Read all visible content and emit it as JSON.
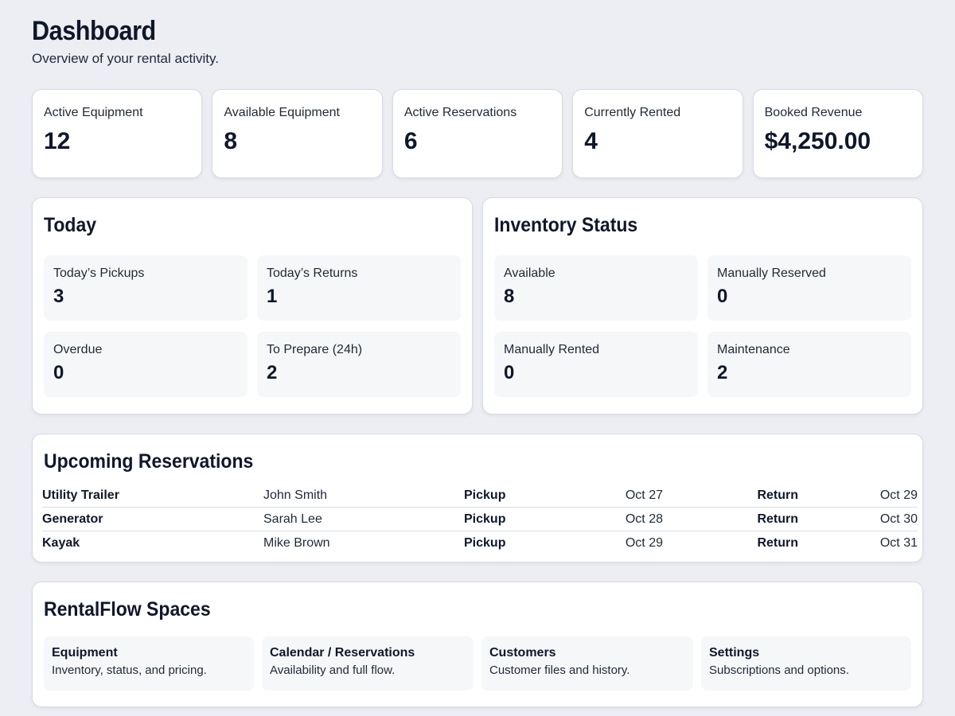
{
  "header": {
    "title": "Dashboard",
    "subtitle": "Overview of your rental activity."
  },
  "stats": [
    {
      "label": "Active Equipment",
      "value": "12"
    },
    {
      "label": "Available Equipment",
      "value": "8"
    },
    {
      "label": "Active Reservations",
      "value": "6"
    },
    {
      "label": "Currently Rented",
      "value": "4"
    },
    {
      "label": "Booked Revenue",
      "value": "$4,250.00"
    }
  ],
  "today": {
    "title": "Today",
    "items": [
      {
        "label": "Today’s Pickups",
        "value": "3"
      },
      {
        "label": "Today’s Returns",
        "value": "1"
      },
      {
        "label": "Overdue",
        "value": "0"
      },
      {
        "label": "To Prepare (24h)",
        "value": "2"
      }
    ]
  },
  "inventory": {
    "title": "Inventory Status",
    "items": [
      {
        "label": "Available",
        "value": "8"
      },
      {
        "label": "Manually Reserved",
        "value": "0"
      },
      {
        "label": "Manually Rented",
        "value": "0"
      },
      {
        "label": "Maintenance",
        "value": "2"
      }
    ]
  },
  "upcoming": {
    "title": "Upcoming Reservations",
    "pickup_label": "Pickup",
    "return_label": "Return",
    "rows": [
      {
        "item": "Utility Trailer",
        "customer": "John Smith",
        "pickup": "Oct 27",
        "return": "Oct 29"
      },
      {
        "item": "Generator",
        "customer": "Sarah Lee",
        "pickup": "Oct 28",
        "return": "Oct 30"
      },
      {
        "item": "Kayak",
        "customer": "Mike Brown",
        "pickup": "Oct 29",
        "return": "Oct 31"
      }
    ]
  },
  "spaces": {
    "title": "RentalFlow Spaces",
    "items": [
      {
        "title": "Equipment",
        "desc": "Inventory, status, and pricing."
      },
      {
        "title": "Calendar / Reservations",
        "desc": "Availability and full flow."
      },
      {
        "title": "Customers",
        "desc": "Customer files and history."
      },
      {
        "title": "Settings",
        "desc": "Subscriptions and options."
      }
    ]
  }
}
